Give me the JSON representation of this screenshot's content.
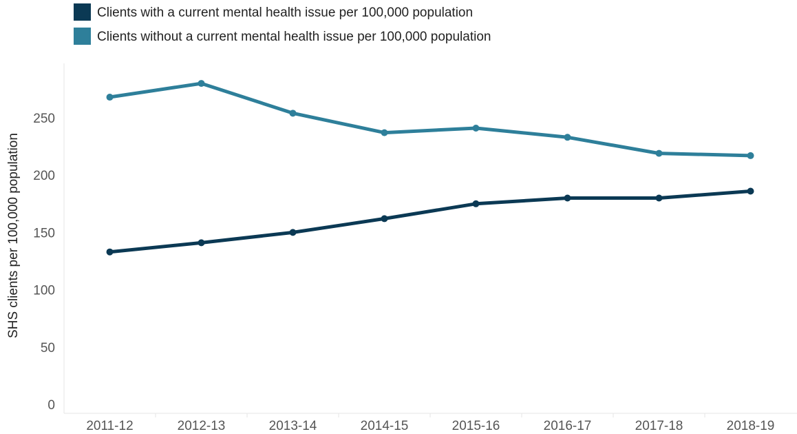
{
  "chart_data": {
    "type": "line",
    "title": "",
    "xlabel": "",
    "ylabel": "SHS clients per 100,000 population",
    "categories": [
      "2011-12",
      "2012-13",
      "2013-14",
      "2014-15",
      "2015-16",
      "2016-17",
      "2017-18",
      "2018-19"
    ],
    "ylim": [
      0,
      290
    ],
    "yticks": [
      0,
      50,
      100,
      150,
      200,
      250
    ],
    "grid": false,
    "legend_position": "top-left",
    "series": [
      {
        "name": "Clients with a current mental health issue per 100,000 population",
        "color": "#0b3954",
        "values": [
          133,
          141,
          150,
          162,
          175,
          180,
          180,
          186
        ]
      },
      {
        "name": "Clients without a current mental health issue per 100,000 population",
        "color": "#2e7f9a",
        "values": [
          268,
          280,
          254,
          237,
          241,
          233,
          219,
          217
        ]
      }
    ]
  }
}
